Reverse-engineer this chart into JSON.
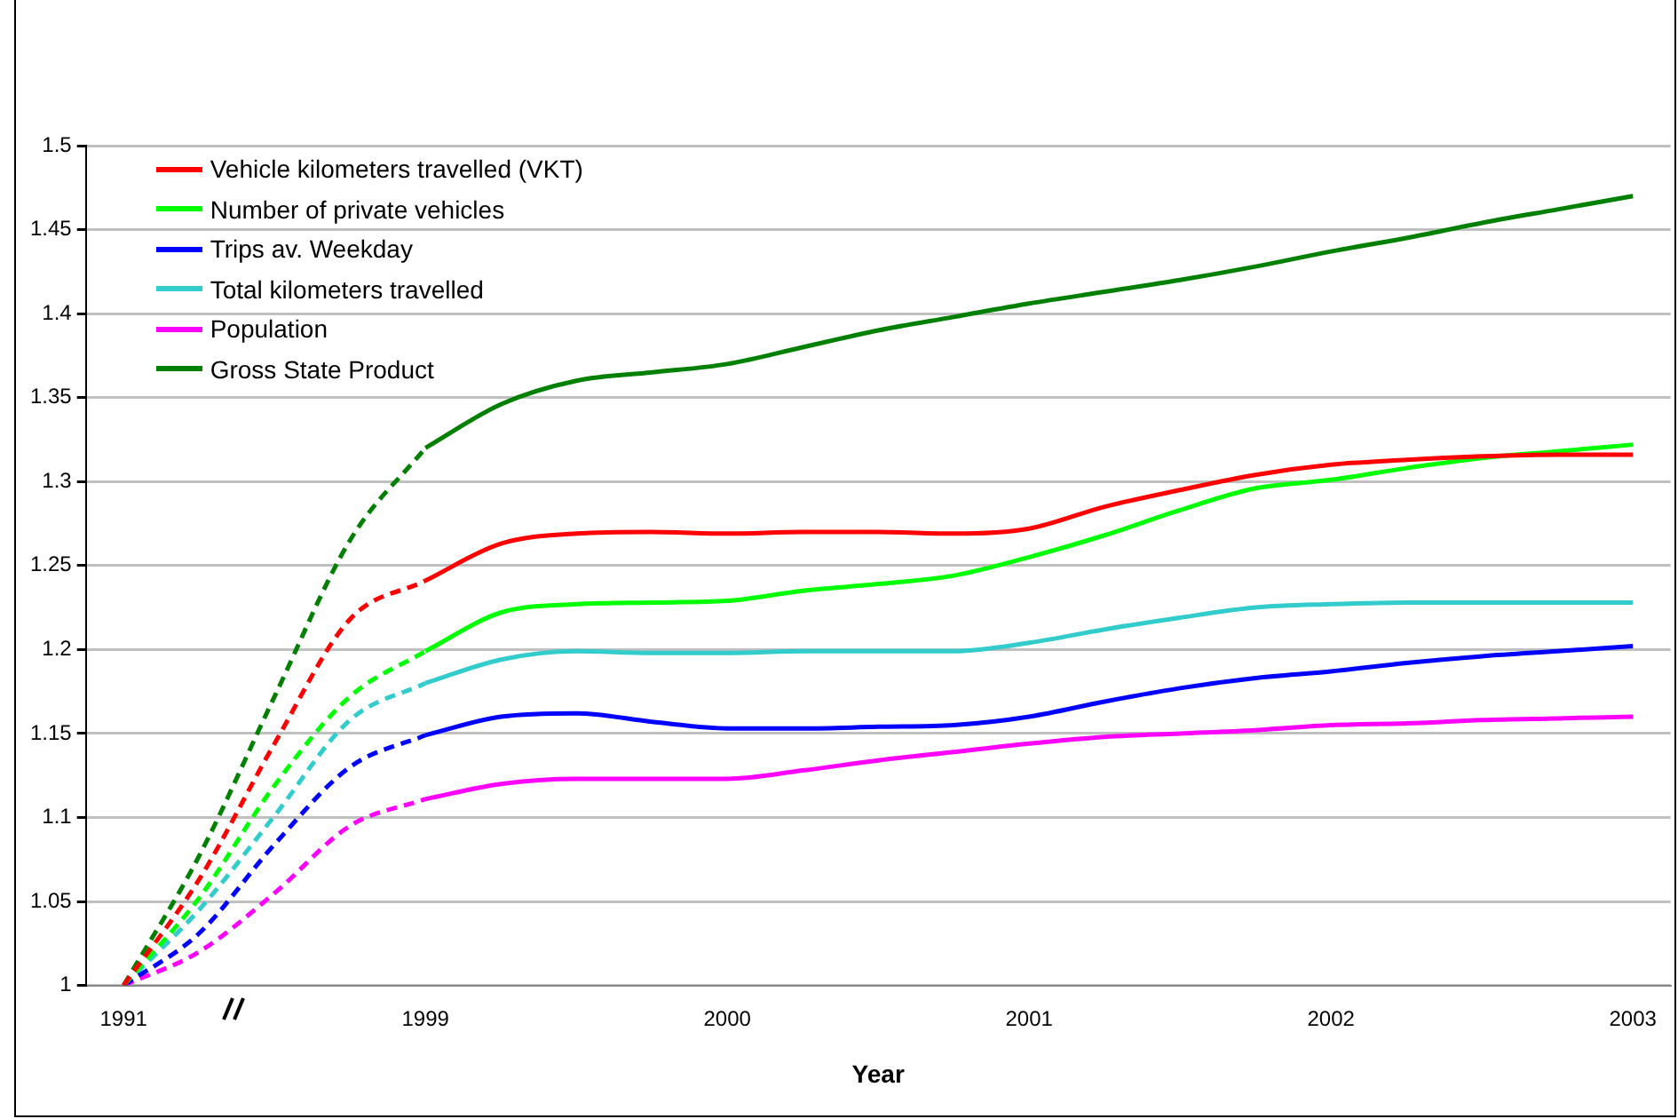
{
  "chart_data": {
    "type": "line",
    "xlabel": "Year",
    "categories": [
      "1991",
      null,
      null,
      null,
      "1999",
      null,
      null,
      null,
      "2000",
      null,
      null,
      null,
      "2001",
      null,
      null,
      null,
      "2002",
      null,
      null,
      null,
      "2003"
    ],
    "ylim": [
      1,
      1.5
    ],
    "yticks": [
      1,
      1.05,
      1.1,
      1.15,
      1.2,
      1.25,
      1.3,
      1.35,
      1.4,
      1.45,
      1.5
    ],
    "grid": "y",
    "legend": "top left",
    "marker": "none",
    "line_style": "solid",
    "series": [
      {
        "name": "Vehicle kilometers travelled (VKT)",
        "color": "#ff0000",
        "values": [
          null,
          null,
          null,
          null,
          1.241,
          1.263,
          1.269,
          1.27,
          1.269,
          1.27,
          1.27,
          1.269,
          1.272,
          1.285,
          1.295,
          1.304,
          1.31,
          1.313,
          1.315,
          1.316,
          1.316
        ]
      },
      {
        "name": "Number of private vehicles",
        "color": "#00ff00",
        "values": [
          null,
          null,
          null,
          null,
          1.199,
          1.222,
          1.227,
          1.228,
          1.229,
          1.235,
          1.239,
          1.244,
          1.255,
          1.268,
          1.283,
          1.296,
          1.301,
          1.308,
          1.314,
          1.318,
          1.322
        ]
      },
      {
        "name": "Trips av. Weekday",
        "color": "#0000ff",
        "values": [
          null,
          null,
          null,
          null,
          1.149,
          1.16,
          1.162,
          1.157,
          1.153,
          1.153,
          1.154,
          1.155,
          1.16,
          1.169,
          1.177,
          1.183,
          1.187,
          1.192,
          1.196,
          1.199,
          1.202
        ]
      },
      {
        "name": "Total kilometers travelled",
        "color": "#33cccc",
        "values": [
          null,
          null,
          null,
          null,
          1.18,
          1.194,
          1.199,
          1.198,
          1.198,
          1.199,
          1.199,
          1.199,
          1.204,
          1.212,
          1.219,
          1.225,
          1.227,
          1.228,
          1.228,
          1.228,
          1.228
        ]
      },
      {
        "name": "Population",
        "color": "#ff00ff",
        "values": [
          null,
          null,
          null,
          null,
          1.111,
          1.12,
          1.123,
          1.123,
          1.123,
          1.128,
          1.134,
          1.139,
          1.144,
          1.148,
          1.15,
          1.152,
          1.155,
          1.156,
          1.158,
          1.159,
          1.16
        ]
      },
      {
        "name": "Gross State Product",
        "color": "#008000",
        "values": [
          null,
          null,
          null,
          null,
          1.32,
          1.346,
          1.36,
          1.365,
          1.37,
          1.38,
          1.39,
          1.398,
          1.406,
          1.413,
          1.42,
          1.428,
          1.437,
          1.445,
          1.454,
          1.462,
          1.47
        ]
      },
      {
        "color": "#ff0000",
        "line_style": "dashed",
        "values": [
          1,
          1.063,
          1.144,
          1.218,
          1.241,
          null,
          null,
          null,
          null,
          null,
          null,
          null,
          null,
          null,
          null,
          null,
          null,
          null,
          null,
          null,
          null
        ]
      },
      {
        "color": "#00ff00",
        "line_style": "dashed",
        "values": [
          1,
          1.052,
          1.119,
          1.172,
          1.199,
          null,
          null,
          null,
          null,
          null,
          null,
          null,
          null,
          null,
          null,
          null,
          null,
          null,
          null,
          null,
          null
        ]
      },
      {
        "color": "#0000ff",
        "line_style": "dashed",
        "values": [
          1,
          1.031,
          1.084,
          1.13,
          1.149,
          null,
          null,
          null,
          null,
          null,
          null,
          null,
          null,
          null,
          null,
          null,
          null,
          null,
          null,
          null,
          null
        ]
      },
      {
        "color": "#33cccc",
        "line_style": "dashed",
        "values": [
          1,
          1.045,
          1.101,
          1.158,
          1.18,
          null,
          null,
          null,
          null,
          null,
          null,
          null,
          null,
          null,
          null,
          null,
          null,
          null,
          null,
          null,
          null
        ]
      },
      {
        "color": "#ff00ff",
        "line_style": "dashed",
        "values": [
          1,
          1.02,
          1.055,
          1.095,
          1.111,
          null,
          null,
          null,
          null,
          null,
          null,
          null,
          null,
          null,
          null,
          null,
          null,
          null,
          null,
          null,
          null
        ]
      },
      {
        "color": "#008000",
        "line_style": "dashed",
        "values": [
          1,
          1.077,
          1.172,
          1.265,
          1.32,
          null,
          null,
          null,
          null,
          null,
          null,
          null,
          null,
          null,
          null,
          null,
          null,
          null,
          null,
          null,
          null
        ]
      }
    ]
  }
}
